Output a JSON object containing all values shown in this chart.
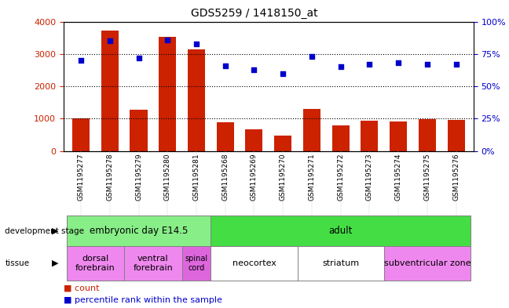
{
  "title": "GDS5259 / 1418150_at",
  "samples": [
    "GSM1195277",
    "GSM1195278",
    "GSM1195279",
    "GSM1195280",
    "GSM1195281",
    "GSM1195268",
    "GSM1195269",
    "GSM1195270",
    "GSM1195271",
    "GSM1195272",
    "GSM1195273",
    "GSM1195274",
    "GSM1195275",
    "GSM1195276"
  ],
  "counts": [
    1000,
    3720,
    1270,
    3520,
    3130,
    880,
    660,
    480,
    1300,
    800,
    930,
    920,
    980,
    950
  ],
  "percentiles": [
    70,
    85,
    72,
    86,
    83,
    66,
    63,
    60,
    73,
    65,
    67,
    68,
    67,
    67
  ],
  "bar_color": "#cc2200",
  "dot_color": "#0000cc",
  "ylim_left": [
    0,
    4000
  ],
  "ylim_right": [
    0,
    100
  ],
  "yticks_left": [
    0,
    1000,
    2000,
    3000,
    4000
  ],
  "ytick_labels_left": [
    "0",
    "1000",
    "2000",
    "3000",
    "4000"
  ],
  "yticks_right": [
    0,
    25,
    50,
    75,
    100
  ],
  "ytick_labels_right": [
    "0%",
    "25%",
    "50%",
    "75%",
    "100%"
  ],
  "dev_stage_row": [
    {
      "label": "embryonic day E14.5",
      "start": 0,
      "end": 4,
      "color": "#88ee88"
    },
    {
      "label": "adult",
      "start": 5,
      "end": 13,
      "color": "#44dd44"
    }
  ],
  "tissue_row": [
    {
      "label": "dorsal\nforebrain",
      "start": 0,
      "end": 1,
      "color": "#ee88ee"
    },
    {
      "label": "ventral\nforebrain",
      "start": 2,
      "end": 3,
      "color": "#ee88ee"
    },
    {
      "label": "spinal\ncord",
      "start": 4,
      "end": 4,
      "color": "#dd66dd"
    },
    {
      "label": "neocortex",
      "start": 5,
      "end": 7,
      "color": "#ffffff"
    },
    {
      "label": "striatum",
      "start": 8,
      "end": 10,
      "color": "#ffffff"
    },
    {
      "label": "subventricular zone",
      "start": 11,
      "end": 13,
      "color": "#ee88ee"
    }
  ],
  "background_color": "#ffffff",
  "xtick_bg_color": "#cccccc",
  "plot_bg_color": "#ffffff"
}
